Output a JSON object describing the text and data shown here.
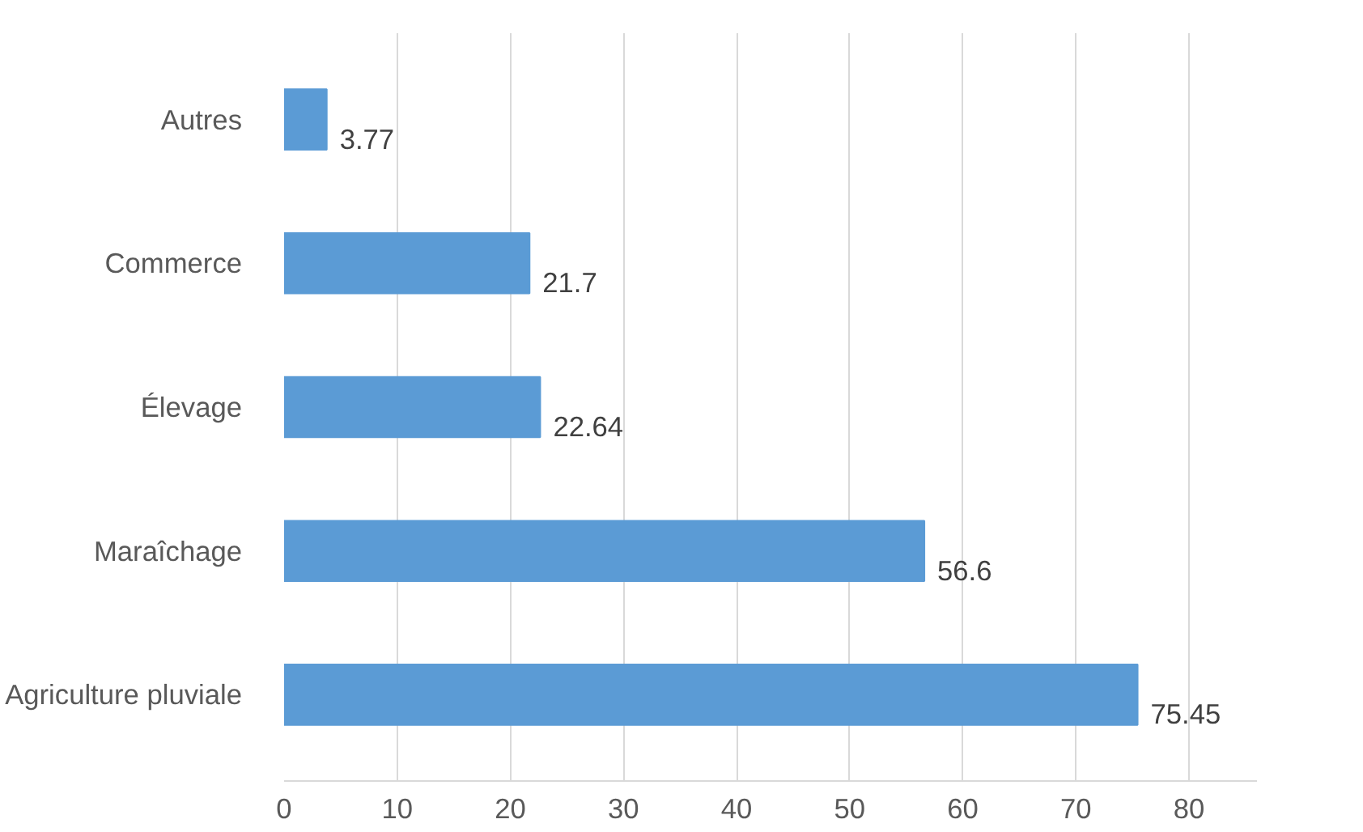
{
  "chart_data": {
    "type": "bar",
    "orientation": "horizontal",
    "categories": [
      "Autres",
      "Commerce",
      "Élevage",
      "Maraîchage",
      "Agriculture pluviale"
    ],
    "values": [
      3.77,
      21.7,
      22.64,
      56.6,
      75.45
    ],
    "color": "#5b9bd5",
    "xlim": [
      0,
      86
    ],
    "xticks": [
      0,
      10,
      20,
      30,
      40,
      50,
      60,
      70,
      80
    ],
    "grid": "x",
    "data_labels": true
  }
}
